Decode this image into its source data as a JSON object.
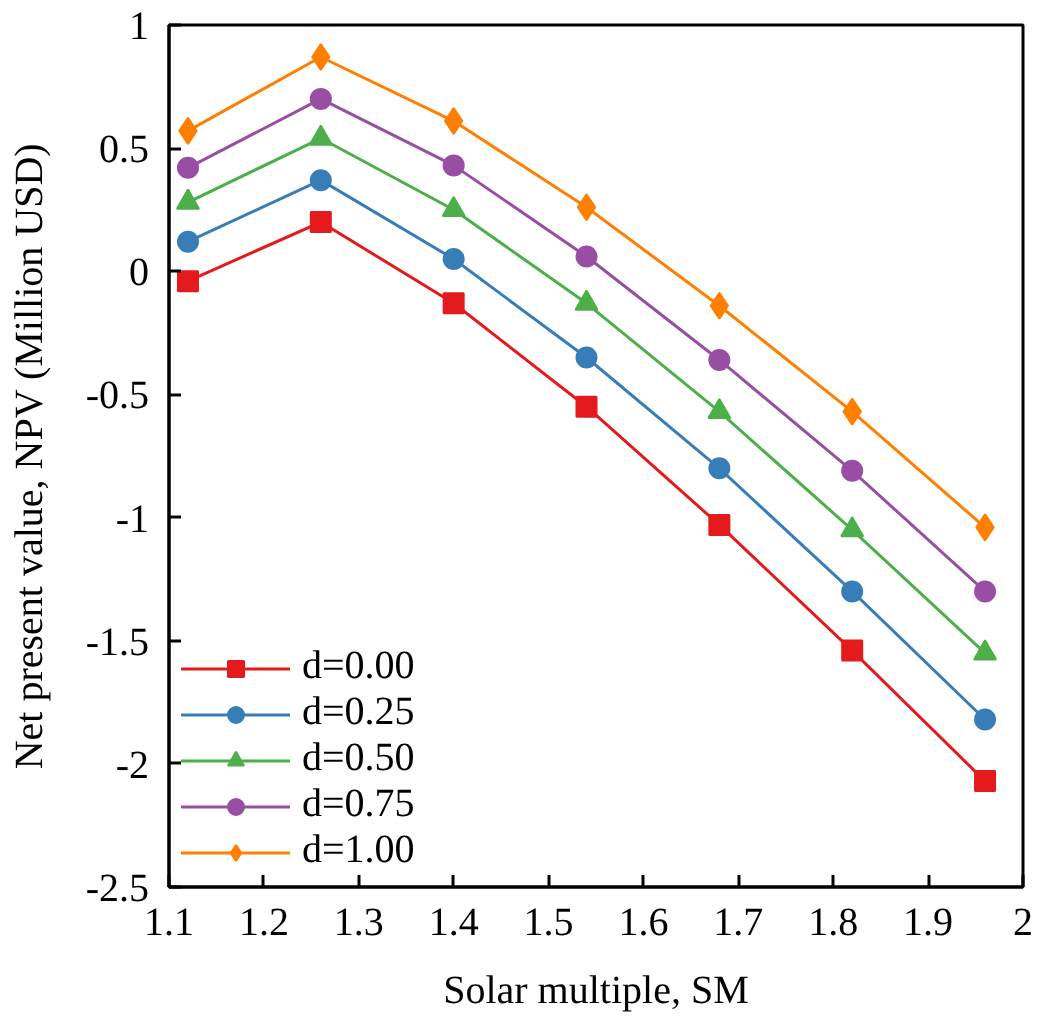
{
  "chart_data": {
    "type": "line",
    "xlabel": "Solar multiple, SM",
    "ylabel": "Net present value, NPV (Million USD)",
    "x": [
      1.12,
      1.26,
      1.4,
      1.54,
      1.68,
      1.82,
      1.96
    ],
    "series": [
      {
        "name": "d=0.00",
        "color": "#e41a1c",
        "marker": "square",
        "values": [
          -0.04,
          0.2,
          -0.13,
          -0.55,
          -1.03,
          -1.54,
          -2.07
        ]
      },
      {
        "name": "d=0.25",
        "color": "#377eb8",
        "marker": "circle",
        "values": [
          0.12,
          0.37,
          0.05,
          -0.35,
          -0.8,
          -1.3,
          -1.82
        ]
      },
      {
        "name": "d=0.50",
        "color": "#4daf4a",
        "marker": "triangle",
        "values": [
          0.28,
          0.54,
          0.25,
          -0.13,
          -0.57,
          -1.05,
          -1.55
        ]
      },
      {
        "name": "d=0.75",
        "color": "#984ea3",
        "marker": "circle",
        "values": [
          0.42,
          0.7,
          0.43,
          0.06,
          -0.36,
          -0.81,
          -1.3
        ]
      },
      {
        "name": "d=1.00",
        "color": "#ff7f00",
        "marker": "diamond",
        "values": [
          0.57,
          0.87,
          0.61,
          0.26,
          -0.14,
          -0.57,
          -1.04
        ]
      }
    ],
    "xlim": [
      1.1,
      2
    ],
    "xticks": [
      1.1,
      1.2,
      1.3,
      1.4,
      1.5,
      1.6,
      1.7,
      1.8,
      1.9,
      2
    ],
    "ylim": [
      -2.5,
      1
    ],
    "yticks": [
      -2.5,
      -2,
      -1.5,
      -1,
      -0.5,
      0,
      0.5,
      1
    ],
    "grid": false,
    "legend": "bottom left",
    "line_style": "solid"
  }
}
